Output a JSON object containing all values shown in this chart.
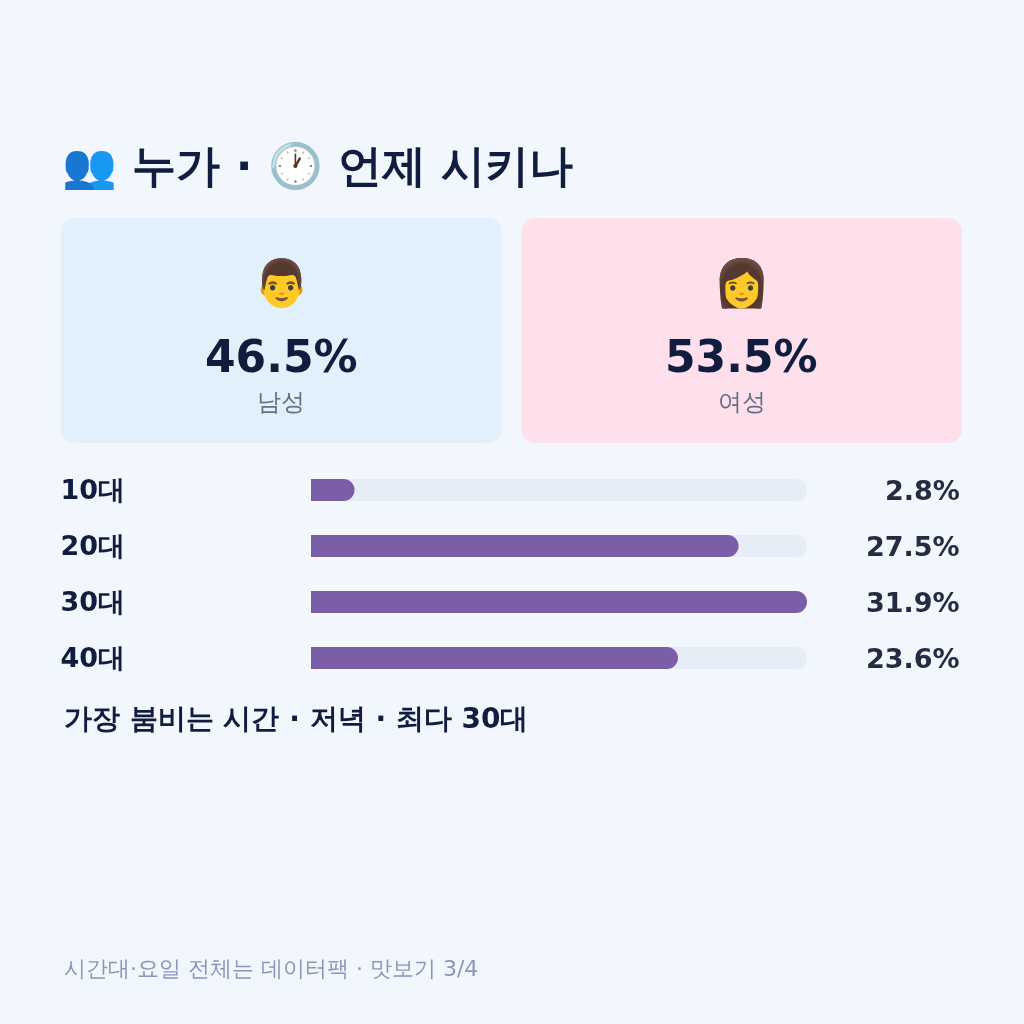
{
  "chart_data": [
    {
      "type": "other",
      "title": "👥 누가 · 🕐 언제 시키나",
      "annotations": [
        "👨",
        "46.5%",
        "남성",
        "👩",
        "53.5%",
        "여성"
      ],
      "colors": [
        "#e2f0fb",
        "#fde0eb"
      ]
    },
    {
      "type": "bar",
      "orientation": "horizontal",
      "categories": [
        "10대",
        "20대",
        "30대",
        "40대"
      ],
      "values": [
        2.8,
        27.5,
        31.9,
        23.6
      ],
      "value_labels": [
        "2.8%",
        "27.5%",
        "31.9%",
        "23.6%"
      ],
      "color": "#7b5ea7",
      "xlim": [
        0,
        31.9
      ],
      "tick_labels": "y",
      "annotations": [
        "가장 붐비는 시간 · 저녁 · 최다 30대",
        "시간대·요일 전체는 데이터팩 · 맛보기 3/4"
      ]
    }
  ]
}
